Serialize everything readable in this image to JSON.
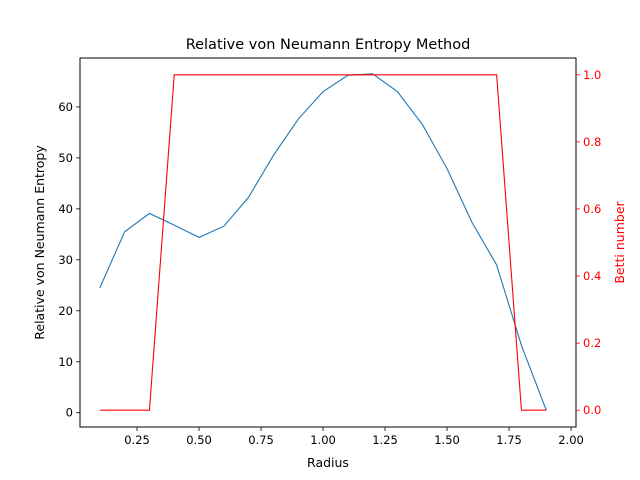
{
  "chart_data": {
    "type": "line",
    "title": "Relative von Neumann Entropy Method",
    "xlabel": "Radius",
    "ylabel_left": "Relative von Neumann Entropy",
    "ylabel_right": "Betti number",
    "xlim": [
      0.02,
      2.02
    ],
    "ylim_left": [
      -2.8,
      69.6
    ],
    "ylim_right": [
      -0.05,
      1.05
    ],
    "x_ticks": [
      0.25,
      0.5,
      0.75,
      1.0,
      1.25,
      1.5,
      1.75,
      2.0
    ],
    "x_tick_labels": [
      "0.25",
      "0.50",
      "0.75",
      "1.00",
      "1.25",
      "1.50",
      "1.75",
      "2.00"
    ],
    "y_left_ticks": [
      0,
      10,
      20,
      30,
      40,
      50,
      60
    ],
    "y_left_tick_labels": [
      "0",
      "10",
      "20",
      "30",
      "40",
      "50",
      "60"
    ],
    "y_right_ticks": [
      0.0,
      0.2,
      0.4,
      0.6,
      0.8,
      1.0
    ],
    "y_right_tick_labels": [
      "0.0",
      "0.2",
      "0.4",
      "0.6",
      "0.8",
      "1.0"
    ],
    "grid": false,
    "series": [
      {
        "axis": "left",
        "color": "#1f77b4",
        "x": [
          0.1,
          0.2,
          0.3,
          0.4,
          0.5,
          0.6,
          0.7,
          0.8,
          0.9,
          1.0,
          1.1,
          1.2,
          1.3,
          1.4,
          1.5,
          1.6,
          1.7,
          1.8,
          1.9
        ],
        "y": [
          24.5,
          35.5,
          39.1,
          36.8,
          34.4,
          36.6,
          42.3,
          50.5,
          57.6,
          63.0,
          66.2,
          66.5,
          63.0,
          56.6,
          47.9,
          37.4,
          29.0,
          13.2,
          0.5
        ]
      },
      {
        "axis": "right",
        "color": "#ff0000",
        "x": [
          0.1,
          0.2,
          0.3,
          0.4,
          0.5,
          0.6,
          0.7,
          0.8,
          0.9,
          1.0,
          1.1,
          1.2,
          1.3,
          1.4,
          1.5,
          1.6,
          1.7,
          1.8,
          1.9
        ],
        "y": [
          0,
          0,
          0,
          1,
          1,
          1,
          1,
          1,
          1,
          1,
          1,
          1,
          1,
          1,
          1,
          1,
          1,
          0,
          0
        ]
      }
    ],
    "axis_colors": {
      "left": "#000000",
      "right": "#ff0000"
    }
  }
}
